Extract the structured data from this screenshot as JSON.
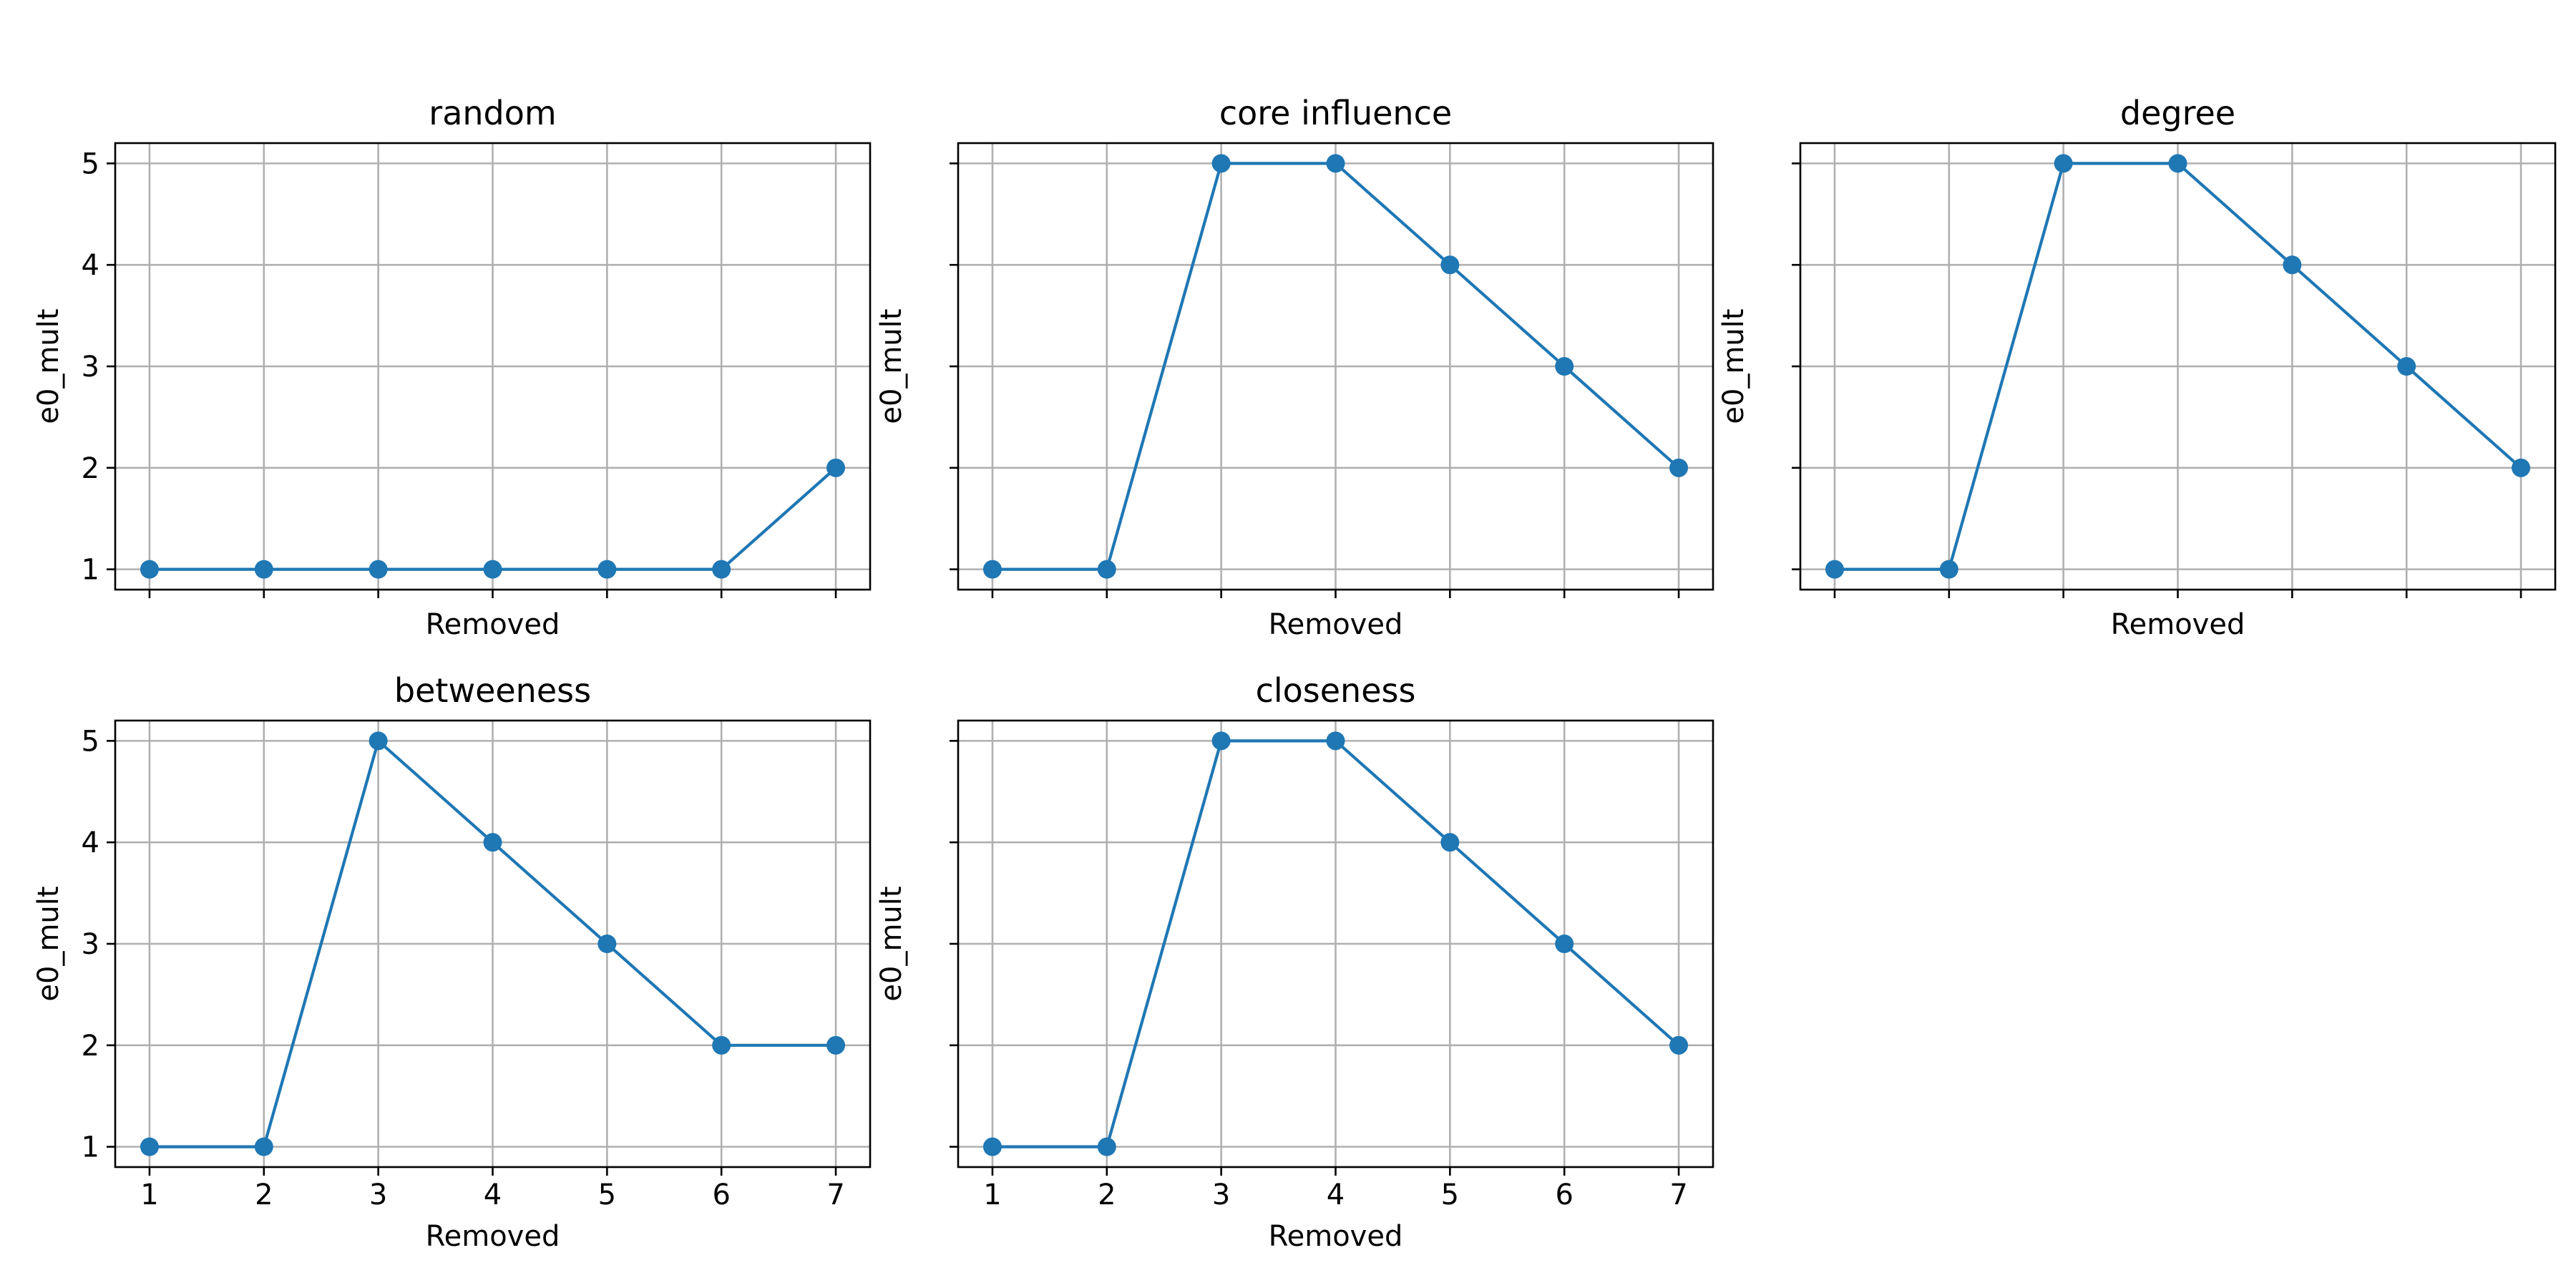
{
  "style": {
    "series_color": "#1f77b4"
  },
  "chart_data": [
    {
      "type": "line",
      "title": "random",
      "xlabel": "Removed",
      "ylabel": "e0_mult",
      "x": [
        1,
        2,
        3,
        4,
        5,
        6,
        7
      ],
      "y": [
        1,
        1,
        1,
        1,
        1,
        1,
        2
      ],
      "xlim": [
        0.7,
        7.3
      ],
      "ylim": [
        0.8,
        5.2
      ],
      "xticks": [
        1,
        2,
        3,
        4,
        5,
        6,
        7
      ],
      "yticks": [
        1,
        2,
        3,
        4,
        5
      ],
      "show_xticklabels": false,
      "show_yticklabels": true,
      "grid": true,
      "marker": "circle"
    },
    {
      "type": "line",
      "title": "core influence",
      "xlabel": "Removed",
      "ylabel": "e0_mult",
      "x": [
        1,
        2,
        3,
        4,
        5,
        6,
        7
      ],
      "y": [
        1,
        1,
        5,
        5,
        4,
        3,
        2
      ],
      "xlim": [
        0.7,
        7.3
      ],
      "ylim": [
        0.8,
        5.2
      ],
      "xticks": [
        1,
        2,
        3,
        4,
        5,
        6,
        7
      ],
      "yticks": [
        1,
        2,
        3,
        4,
        5
      ],
      "show_xticklabels": false,
      "show_yticklabels": false,
      "grid": true,
      "marker": "circle"
    },
    {
      "type": "line",
      "title": "degree",
      "xlabel": "Removed",
      "ylabel": "e0_mult",
      "x": [
        1,
        2,
        3,
        4,
        5,
        6,
        7
      ],
      "y": [
        1,
        1,
        5,
        5,
        4,
        3,
        2
      ],
      "xlim": [
        0.7,
        7.3
      ],
      "ylim": [
        0.8,
        5.2
      ],
      "xticks": [
        1,
        2,
        3,
        4,
        5,
        6,
        7
      ],
      "yticks": [
        1,
        2,
        3,
        4,
        5
      ],
      "show_xticklabels": false,
      "show_yticklabels": false,
      "grid": true,
      "marker": "circle"
    },
    {
      "type": "line",
      "title": "betweeness",
      "xlabel": "Removed",
      "ylabel": "e0_mult",
      "x": [
        1,
        2,
        3,
        4,
        5,
        6,
        7
      ],
      "y": [
        1,
        1,
        5,
        4,
        3,
        2,
        2
      ],
      "xlim": [
        0.7,
        7.3
      ],
      "ylim": [
        0.8,
        5.2
      ],
      "xticks": [
        1,
        2,
        3,
        4,
        5,
        6,
        7
      ],
      "yticks": [
        1,
        2,
        3,
        4,
        5
      ],
      "show_xticklabels": true,
      "show_yticklabels": true,
      "grid": true,
      "marker": "circle"
    },
    {
      "type": "line",
      "title": "closeness",
      "xlabel": "Removed",
      "ylabel": "e0_mult",
      "x": [
        1,
        2,
        3,
        4,
        5,
        6,
        7
      ],
      "y": [
        1,
        1,
        5,
        5,
        4,
        3,
        2
      ],
      "xlim": [
        0.7,
        7.3
      ],
      "ylim": [
        0.8,
        5.2
      ],
      "xticks": [
        1,
        2,
        3,
        4,
        5,
        6,
        7
      ],
      "yticks": [
        1,
        2,
        3,
        4,
        5
      ],
      "show_xticklabels": true,
      "show_yticklabels": false,
      "grid": true,
      "marker": "circle"
    }
  ]
}
